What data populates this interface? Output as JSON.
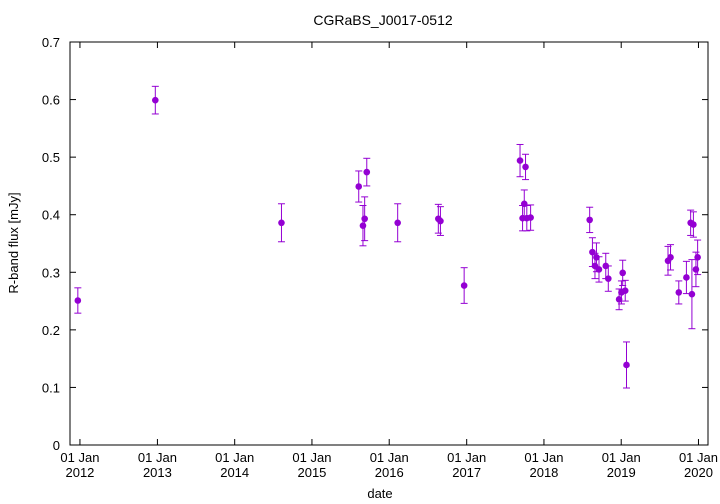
{
  "chart_data": {
    "type": "scatter",
    "title": "CGRaBS_J0017-0512",
    "xlabel": "date",
    "ylabel": "R-band flux [mJy]",
    "ylim": [
      0,
      0.7
    ],
    "xlim": [
      "2011-11-15",
      "2020-02-15"
    ],
    "yticks": [
      "0",
      "0.1",
      "0.2",
      "0.3",
      "0.4",
      "0.5",
      "0.6",
      "0.7"
    ],
    "xticks": [
      {
        "date": "2012-01-01",
        "line1": "01 Jan",
        "line2": "2012"
      },
      {
        "date": "2013-01-01",
        "line1": "01 Jan",
        "line2": "2013"
      },
      {
        "date": "2014-01-01",
        "line1": "01 Jan",
        "line2": "2014"
      },
      {
        "date": "2015-01-01",
        "line1": "01 Jan",
        "line2": "2015"
      },
      {
        "date": "2016-01-01",
        "line1": "01 Jan",
        "line2": "2016"
      },
      {
        "date": "2017-01-01",
        "line1": "01 Jan",
        "line2": "2017"
      },
      {
        "date": "2018-01-01",
        "line1": "01 Jan",
        "line2": "2018"
      },
      {
        "date": "2019-01-01",
        "line1": "01 Jan",
        "line2": "2019"
      },
      {
        "date": "2020-01-01",
        "line1": "01 Jan",
        "line2": "2020"
      }
    ],
    "grid": false,
    "color": "#9400d3",
    "points": [
      {
        "x": "2011-12-22",
        "y": 0.251,
        "err": 0.022
      },
      {
        "x": "2012-12-22",
        "y": 0.599,
        "err": 0.024
      },
      {
        "x": "2014-08-10",
        "y": 0.386,
        "err": 0.033
      },
      {
        "x": "2015-08-10",
        "y": 0.449,
        "err": 0.027
      },
      {
        "x": "2015-08-30",
        "y": 0.381,
        "err": 0.035
      },
      {
        "x": "2015-09-07",
        "y": 0.393,
        "err": 0.038
      },
      {
        "x": "2015-09-17",
        "y": 0.474,
        "err": 0.024
      },
      {
        "x": "2016-02-10",
        "y": 0.386,
        "err": 0.033
      },
      {
        "x": "2016-08-20",
        "y": 0.393,
        "err": 0.025
      },
      {
        "x": "2016-08-30",
        "y": 0.389,
        "err": 0.025
      },
      {
        "x": "2016-12-20",
        "y": 0.277,
        "err": 0.031
      },
      {
        "x": "2017-09-10",
        "y": 0.494,
        "err": 0.028
      },
      {
        "x": "2017-09-22",
        "y": 0.394,
        "err": 0.022
      },
      {
        "x": "2017-09-30",
        "y": 0.419,
        "err": 0.024
      },
      {
        "x": "2017-10-06",
        "y": 0.483,
        "err": 0.022
      },
      {
        "x": "2017-10-12",
        "y": 0.394,
        "err": 0.022
      },
      {
        "x": "2017-10-30",
        "y": 0.395,
        "err": 0.022
      },
      {
        "x": "2018-08-05",
        "y": 0.391,
        "err": 0.022
      },
      {
        "x": "2018-08-18",
        "y": 0.335,
        "err": 0.025
      },
      {
        "x": "2018-08-30",
        "y": 0.311,
        "err": 0.022
      },
      {
        "x": "2018-09-06",
        "y": 0.326,
        "err": 0.025
      },
      {
        "x": "2018-09-18",
        "y": 0.305,
        "err": 0.022
      },
      {
        "x": "2018-10-20",
        "y": 0.311,
        "err": 0.022
      },
      {
        "x": "2018-11-01",
        "y": 0.289,
        "err": 0.022
      },
      {
        "x": "2018-12-22",
        "y": 0.253,
        "err": 0.018
      },
      {
        "x": "2019-01-02",
        "y": 0.265,
        "err": 0.02
      },
      {
        "x": "2019-01-08",
        "y": 0.299,
        "err": 0.022
      },
      {
        "x": "2019-01-20",
        "y": 0.268,
        "err": 0.018
      },
      {
        "x": "2019-01-26",
        "y": 0.139,
        "err": 0.04
      },
      {
        "x": "2019-08-10",
        "y": 0.32,
        "err": 0.025
      },
      {
        "x": "2019-08-22",
        "y": 0.326,
        "err": 0.022
      },
      {
        "x": "2019-09-30",
        "y": 0.265,
        "err": 0.02
      },
      {
        "x": "2019-11-05",
        "y": 0.291,
        "err": 0.028
      },
      {
        "x": "2019-11-25",
        "y": 0.386,
        "err": 0.022
      },
      {
        "x": "2019-12-01",
        "y": 0.262,
        "err": 0.06
      },
      {
        "x": "2019-12-08",
        "y": 0.383,
        "err": 0.022
      },
      {
        "x": "2019-12-20",
        "y": 0.305,
        "err": 0.03
      },
      {
        "x": "2019-12-28",
        "y": 0.326,
        "err": 0.03
      }
    ]
  }
}
